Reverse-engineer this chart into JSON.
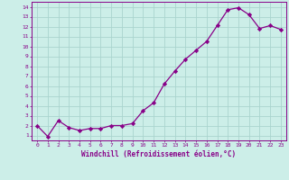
{
  "x": [
    0,
    1,
    2,
    3,
    4,
    5,
    6,
    7,
    8,
    9,
    10,
    11,
    12,
    13,
    14,
    15,
    16,
    17,
    18,
    19,
    20,
    21,
    22,
    23
  ],
  "y": [
    2.0,
    0.9,
    2.5,
    1.8,
    1.5,
    1.7,
    1.7,
    2.0,
    2.0,
    2.2,
    3.5,
    4.3,
    6.2,
    7.5,
    8.7,
    9.6,
    10.5,
    12.1,
    13.7,
    13.9,
    13.2,
    11.8,
    12.1,
    11.7
  ],
  "line_color": "#880088",
  "marker": "D",
  "marker_size": 2.2,
  "bg_color": "#cceee8",
  "grid_color": "#aad4ce",
  "tick_color": "#880088",
  "label_color": "#880088",
  "xlabel": "Windchill (Refroidissement éolien,°C)",
  "ylim": [
    0.5,
    14.5
  ],
  "xlim": [
    -0.5,
    23.5
  ],
  "yticks": [
    1,
    2,
    3,
    4,
    5,
    6,
    7,
    8,
    9,
    10,
    11,
    12,
    13,
    14
  ],
  "xticks": [
    0,
    1,
    2,
    3,
    4,
    5,
    6,
    7,
    8,
    9,
    10,
    11,
    12,
    13,
    14,
    15,
    16,
    17,
    18,
    19,
    20,
    21,
    22,
    23
  ]
}
